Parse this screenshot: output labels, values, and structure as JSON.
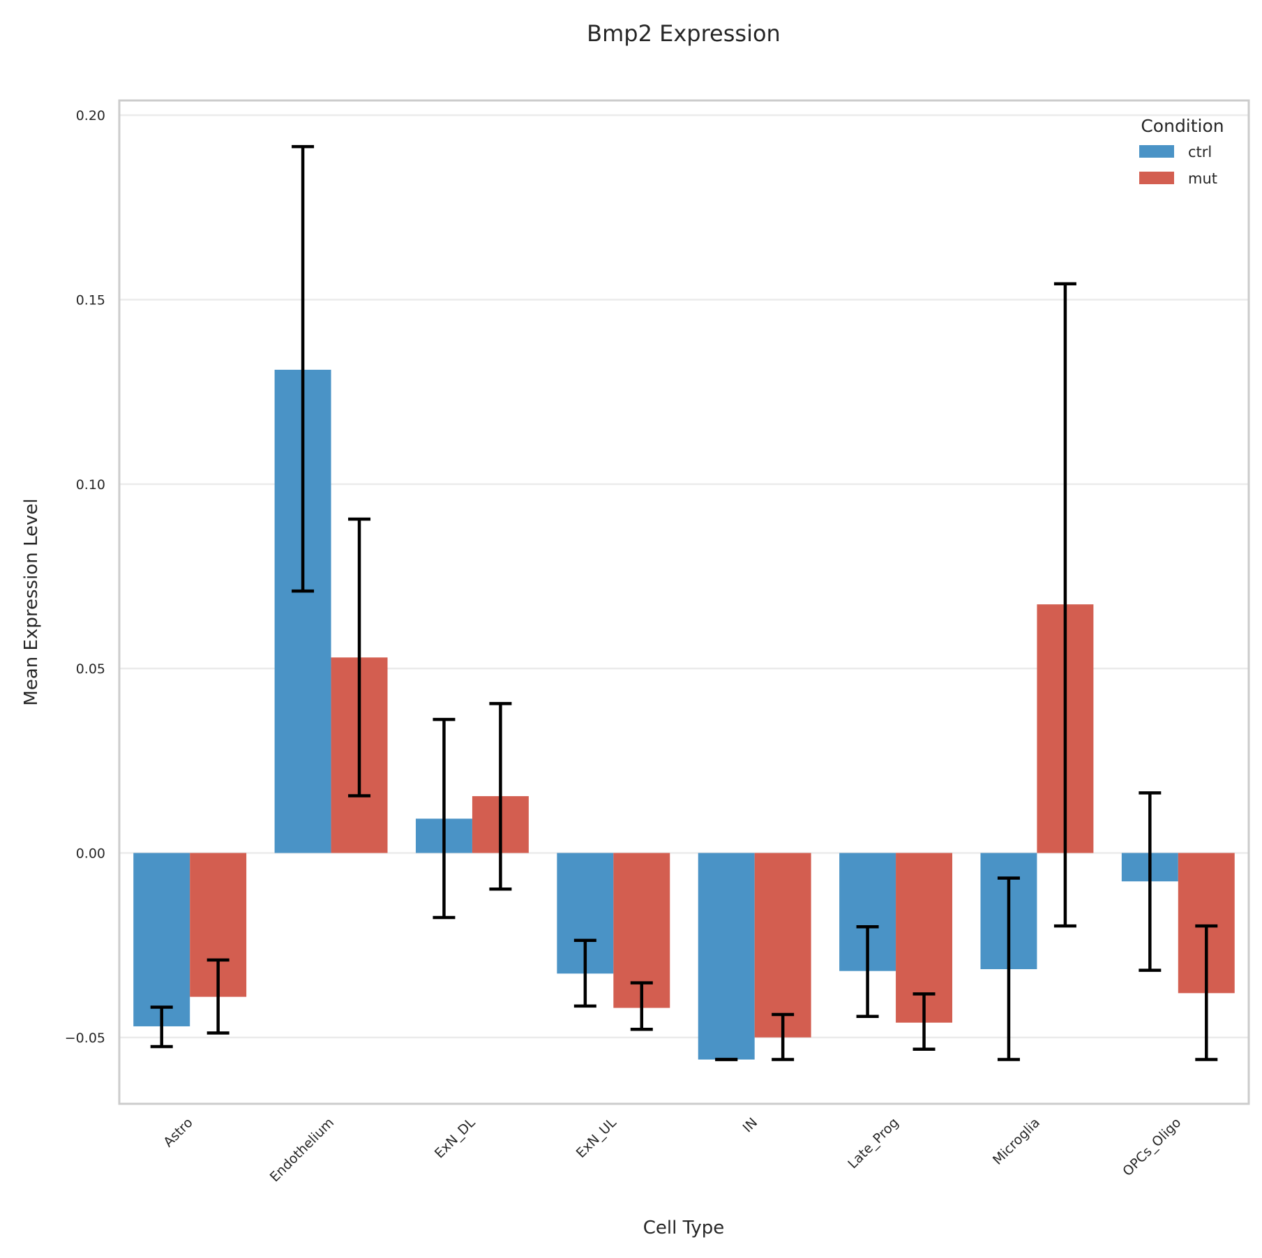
{
  "chart_data": {
    "type": "bar",
    "title": "Bmp2 Expression",
    "xlabel": "Cell Type",
    "ylabel": "Mean Expression Level",
    "categories": [
      "Astro",
      "Endothelium",
      "ExN_DL",
      "ExN_UL",
      "IN",
      "Late_Prog",
      "Microglia",
      "OPCs_Oligo"
    ],
    "ylim": [
      -0.068,
      0.204
    ],
    "yticks": [
      -0.05,
      0.0,
      0.05,
      0.1,
      0.15,
      0.2
    ],
    "ytick_labels": [
      "−0.05",
      "0.00",
      "0.05",
      "0.10",
      "0.15",
      "0.20"
    ],
    "grid": true,
    "legend": {
      "title": "Condition",
      "position": "top-right"
    },
    "series": [
      {
        "name": "ctrl",
        "color": "#4a93c6",
        "values": [
          -0.047,
          0.131,
          0.0093,
          -0.0327,
          -0.056,
          -0.032,
          -0.0315,
          -0.0077
        ],
        "err_low": [
          -0.0525,
          0.071,
          -0.0175,
          -0.0415,
          -0.056,
          -0.0443,
          -0.056,
          -0.0318
        ],
        "err_high": [
          -0.0418,
          0.1915,
          0.0362,
          -0.0237,
          -0.056,
          -0.02,
          -0.0068,
          0.0163
        ]
      },
      {
        "name": "mut",
        "color": "#d35e50",
        "values": [
          -0.039,
          0.053,
          0.0154,
          -0.042,
          -0.05,
          -0.046,
          0.0674,
          -0.038
        ],
        "err_low": [
          -0.0488,
          0.0155,
          -0.0098,
          -0.0478,
          -0.056,
          -0.0532,
          -0.0198,
          -0.056
        ],
        "err_high": [
          -0.029,
          0.0905,
          0.0405,
          -0.0352,
          -0.0438,
          -0.0382,
          0.1543,
          -0.0198
        ]
      }
    ]
  }
}
